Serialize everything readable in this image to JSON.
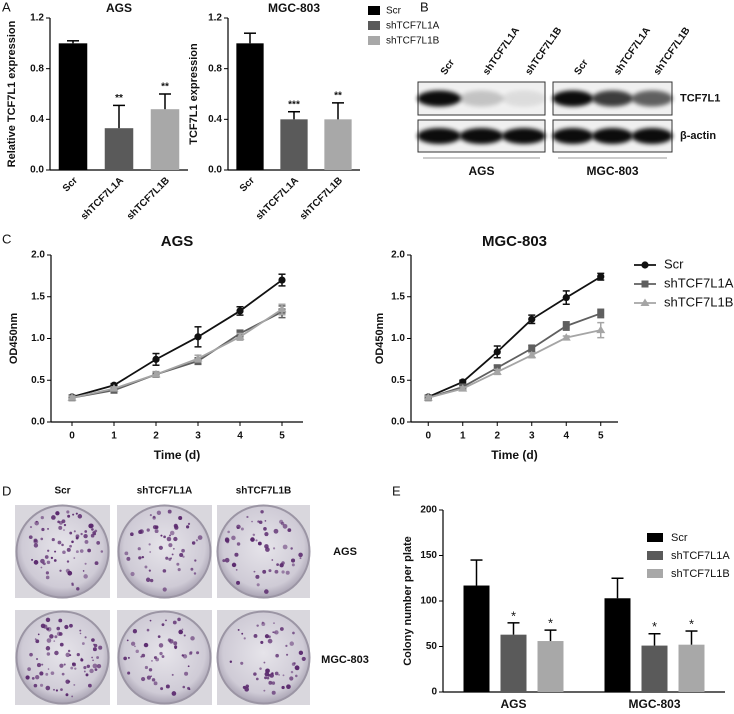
{
  "panel_labels": [
    "A",
    "B",
    "C",
    "D",
    "E"
  ],
  "chart_data": [
    {
      "type": "bar",
      "title": "AGS",
      "y_label": "Relative TCF7L1 expression",
      "categories": [
        "Scr",
        "shTCF7L1A",
        "shTCF7L1B"
      ],
      "values": [
        1.0,
        0.33,
        0.48
      ],
      "errors": [
        0.02,
        0.18,
        0.12
      ],
      "annotations": [
        null,
        "**",
        "**"
      ],
      "colors": [
        "#000000",
        "#5a5a5a",
        "#a8a8a8"
      ],
      "ylim": [
        0,
        1.2
      ],
      "yticks": [
        {
          "value": 0,
          "label": "0.0"
        },
        0.4,
        0.8,
        1.2
      ]
    },
    {
      "type": "bar",
      "title": "MGC-803",
      "y_label": "TCF7L1 expression",
      "legend": true,
      "categories": [
        "Scr",
        "shTCF7L1A",
        "shTCF7L1B"
      ],
      "values": [
        1.0,
        0.4,
        0.4
      ],
      "errors": [
        0.08,
        0.06,
        0.13
      ],
      "annotations": [
        null,
        "***",
        "**"
      ],
      "colors": [
        "#000000",
        "#5a5a5a",
        "#a8a8a8"
      ],
      "ylim": [
        0,
        1.2
      ],
      "yticks": [
        {
          "value": 0,
          "label": "0.0"
        },
        0.4,
        0.8,
        1.2
      ]
    },
    {
      "type": "line",
      "title": "AGS",
      "x_label": "Time (d)",
      "y_label": "OD450nm",
      "x": [
        0,
        1,
        2,
        3,
        4,
        5
      ],
      "xlim": [
        -0.5,
        5.5
      ],
      "xticks": [
        0,
        1,
        2,
        3,
        4,
        5
      ],
      "ylim": [
        0,
        2
      ],
      "yticks": [
        {
          "value": 0,
          "label": "0.0"
        },
        0.5,
        {
          "value": 1,
          "label": "1.0"
        },
        1.5,
        {
          "value": 2,
          "label": "2.0"
        }
      ],
      "series": [
        {
          "color": "#111111",
          "marker": "circle",
          "values": [
            0.3,
            0.44,
            0.75,
            1.02,
            1.33,
            1.7
          ],
          "errors": [
            0.02,
            0.02,
            0.07,
            0.12,
            0.05,
            0.07
          ]
        },
        {
          "color": "#5f5f5f",
          "marker": "square",
          "values": [
            0.29,
            0.38,
            0.57,
            0.73,
            1.06,
            1.32
          ],
          "errors": [
            0.02,
            0.02,
            0.03,
            0.04,
            0.04,
            0.07
          ]
        },
        {
          "color": "#a5a5a5",
          "marker": "triangle",
          "values": [
            0.29,
            0.4,
            0.57,
            0.76,
            1.02,
            1.35
          ],
          "errors": [
            0.02,
            0.02,
            0.03,
            0.04,
            0.04,
            0.06
          ]
        }
      ]
    },
    {
      "type": "line",
      "title": "MGC-803",
      "x_label": "Time (d)",
      "y_label": "OD450nm",
      "legend": true,
      "x": [
        0,
        1,
        2,
        3,
        4,
        5
      ],
      "xlim": [
        -0.5,
        5.5
      ],
      "xticks": [
        0,
        1,
        2,
        3,
        4,
        5
      ],
      "ylim": [
        0,
        2
      ],
      "yticks": [
        {
          "value": 0,
          "label": "0.0"
        },
        0.5,
        {
          "value": 1,
          "label": "1.0"
        },
        1.5,
        {
          "value": 2,
          "label": "2.0"
        }
      ],
      "series": [
        {
          "name": "Scr",
          "color": "#111111",
          "marker": "circle",
          "values": [
            0.3,
            0.48,
            0.84,
            1.23,
            1.49,
            1.74
          ],
          "errors": [
            0.02,
            0.02,
            0.07,
            0.05,
            0.08,
            0.04
          ]
        },
        {
          "name": "shTCF7L1A",
          "color": "#5f5f5f",
          "marker": "square",
          "values": [
            0.29,
            0.42,
            0.65,
            0.88,
            1.15,
            1.3
          ],
          "errors": [
            0.02,
            0.02,
            0.03,
            0.04,
            0.05,
            0.05
          ]
        },
        {
          "name": "shTCF7L1B",
          "color": "#a5a5a5",
          "marker": "triangle",
          "values": [
            0.29,
            0.4,
            0.6,
            0.8,
            1.01,
            1.1
          ],
          "errors": [
            0.02,
            0.02,
            0.03,
            0.03,
            0.02,
            0.09
          ]
        }
      ]
    },
    {
      "type": "grouped_bar",
      "y_label": "Colony number per plate",
      "legend": true,
      "categories": [
        "AGS",
        "MGC-803"
      ],
      "ylim": [
        0,
        200
      ],
      "yticks": [
        0,
        50,
        100,
        150,
        200
      ],
      "series": [
        {
          "name": "Scr",
          "color": "#000000",
          "values": [
            117,
            103
          ],
          "errors": [
            28,
            22
          ],
          "annotations": [
            null,
            null
          ]
        },
        {
          "name": "shTCF7L1A",
          "color": "#5a5a5a",
          "values": [
            63,
            51
          ],
          "errors": [
            13,
            13
          ],
          "annotations": [
            "*",
            "*"
          ]
        },
        {
          "name": "shTCF7L1B",
          "color": "#a8a8a8",
          "values": [
            56,
            52
          ],
          "errors": [
            12,
            15
          ],
          "annotations": [
            "*",
            "*"
          ]
        }
      ]
    }
  ],
  "blot": {
    "lanes": [
      "Scr",
      "shTCF7L1A",
      "shTCF7L1B"
    ],
    "rows": [
      "TCF7L1",
      "β-actin"
    ],
    "groups": [
      "AGS",
      "MGC-803"
    ]
  },
  "colony": {
    "columns": [
      "Scr",
      "shTCF7L1A",
      "shTCF7L1B"
    ],
    "rows": [
      "AGS",
      "MGC-803"
    ]
  }
}
